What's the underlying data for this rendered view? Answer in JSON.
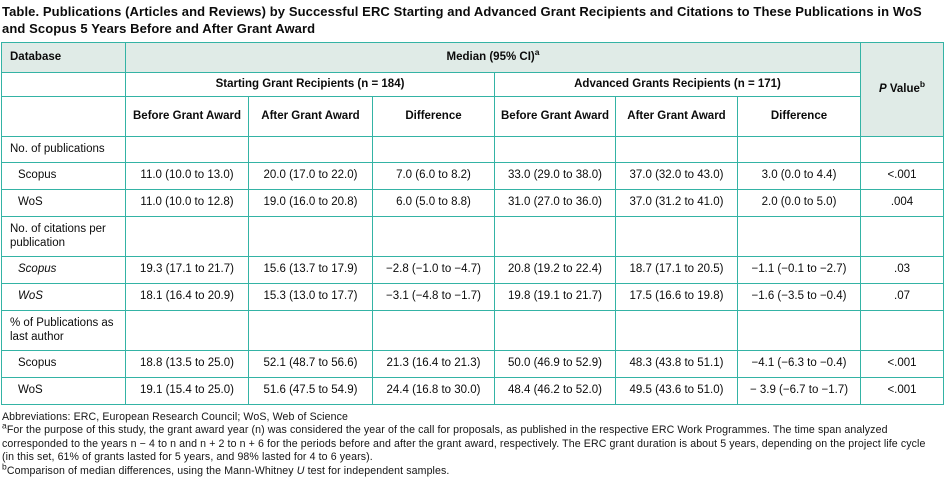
{
  "title": "Table. Publications (Articles and Reviews) by Successful ERC Starting and Advanced Grant Recipients and Citations to These Publications in WoS and Scopus 5 Years Before and After Grant Award",
  "header": {
    "database": "Database",
    "median": "Median (95% CI)",
    "median_sup": "a",
    "starting_group": "Starting Grant Recipients (n = 184)",
    "advanced_group": "Advanced Grants Recipients (n = 171)",
    "before1": "Before Grant Award",
    "after1": "After Grant Award",
    "difference1": "Difference",
    "before2": "Before Grant Award",
    "after2": "After Grant Award",
    "difference2": "Difference",
    "p_italic": "P",
    "p_value_rest": "Value",
    "p_value_sup": "b"
  },
  "sections": [
    {
      "label": "No. of publications",
      "rows": [
        {
          "label": "Scopus",
          "cells": [
            "11.0 (10.0 to 13.0)",
            "20.0 (17.0 to 22.0)",
            "7.0 (6.0 to 8.2)",
            "33.0 (29.0 to 38.0)",
            "37.0 (32.0 to 43.0)",
            "3.0 (0.0 to 4.4)"
          ],
          "p": "<.001"
        },
        {
          "label": "WoS",
          "cells": [
            "11.0 (10.0 to 12.8)",
            "19.0 (16.0 to 20.8)",
            "6.0 (5.0 to 8.8)",
            "31.0 (27.0 to 36.0)",
            "37.0 (31.2 to 41.0)",
            "2.0 (0.0 to 5.0)"
          ],
          "p": ".004"
        }
      ]
    },
    {
      "label": "No. of citations per publication",
      "rows": [
        {
          "label": "Scopus",
          "cells": [
            "19.3 (17.1 to 21.7)",
            "15.6 (13.7 to 17.9)",
            "−2.8 (−1.0 to −4.7)",
            "20.8 (19.2 to 22.4)",
            "18.7 (17.1 to 20.5)",
            "−1.1 (−0.1 to −2.7)"
          ],
          "p": ".03"
        },
        {
          "label": "WoS",
          "cells": [
            "18.1 (16.4 to 20.9)",
            "15.3 (13.0 to 17.7)",
            "−3.1 (−4.8 to −1.7)",
            "19.8 (19.1 to 21.7)",
            "17.5 (16.6 to 19.8)",
            "−1.6 (−3.5 to −0.4)"
          ],
          "p": ".07"
        }
      ]
    },
    {
      "label": "% of Publications as last author",
      "rows": [
        {
          "label": "Scopus",
          "cells": [
            "18.8 (13.5 to 25.0)",
            "52.1 (48.7 to 56.6)",
            "21.3 (16.4 to 21.3)",
            "50.0 (46.9 to 52.9)",
            "48.3 (43.8 to 51.1)",
            "−4.1 (−6.3 to −0.4)"
          ],
          "p": "<.001"
        },
        {
          "label": "WoS",
          "cells": [
            "19.1 (15.4 to 25.0)",
            "51.6 (47.5 to 54.9)",
            "24.4 (16.8 to 30.0)",
            "48.4 (46.2 to 52.0)",
            "49.5 (43.6 to 51.0)",
            "− 3.9 (−6.7 to −1.7)"
          ],
          "p": "<.001"
        }
      ]
    }
  ],
  "footnotes": {
    "abbreviations": "Abbreviations: ERC, European Research Council; WoS, Web of Science",
    "a_marker": "a",
    "a_text": "For the purpose of this study, the grant award year (n) was considered the year of the call for proposals, as published in the respective ERC Work Programmes. The time span analyzed corresponded to the years n − 4 to n and n + 2 to n + 6 for the periods before and after the grant award, respectively. The ERC grant duration is about 5 years, depending on the project life cycle (in this set, 61% of grants lasted for 5 years, and 98% lasted for 4 to 6 years).",
    "b_marker": "b",
    "b_text_pre": "Comparison of median differences, using the Mann-Whitney",
    "b_italic": "U",
    "b_text_post": "test for independent samples."
  },
  "colors": {
    "rule_teal": "#34b3a5",
    "header_fill": "#e0ebe7",
    "text": "#0b0b0b"
  }
}
